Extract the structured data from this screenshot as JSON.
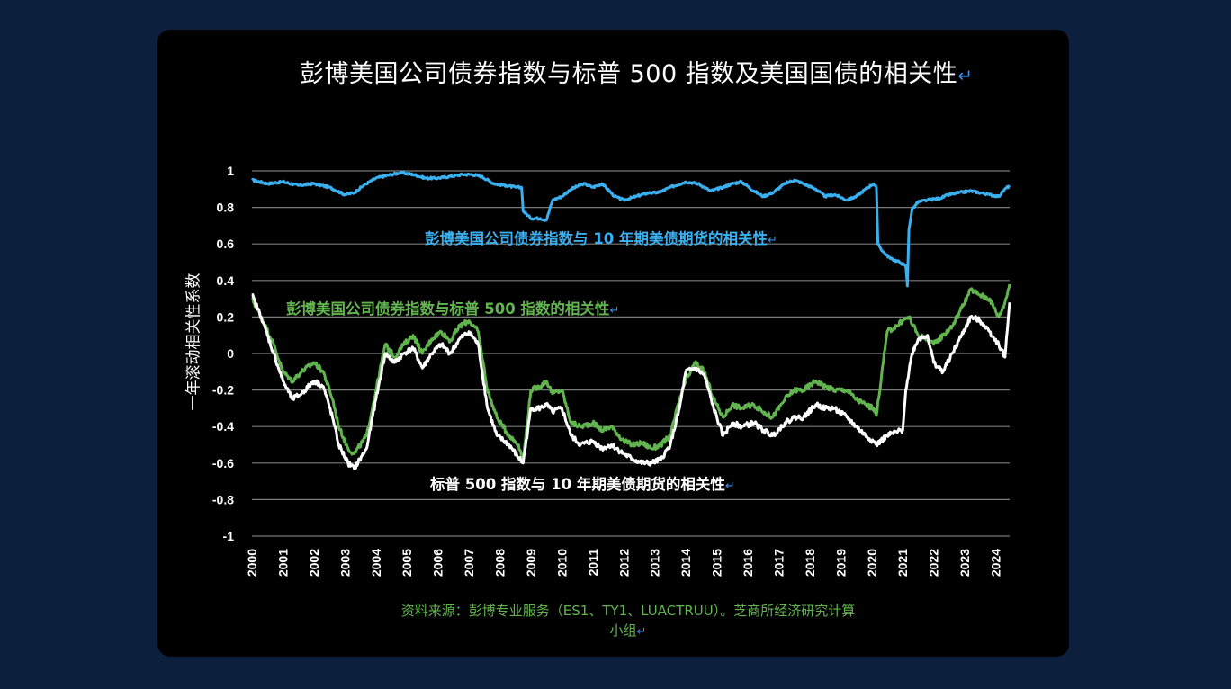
{
  "page": {
    "title": "彭博美国公司债券指数与标普 500 指数及美国国债的相关性",
    "return_mark": "↵",
    "ylabel": "一年滚动相关性系数",
    "source_line1": "资料来源：彭博专业服务（ES1、TY1、LUACTRUU）。芝商所经济研究计算",
    "source_line2": "小组",
    "colors": {
      "background": "#0c1f3c",
      "panel": "#000000",
      "blue": "#3ab0f0",
      "green": "#62b44f",
      "white": "#ffffff"
    }
  },
  "chart_data": {
    "type": "line",
    "title": "彭博美国公司债券指数与标普 500 指数及美国国债的相关性",
    "xlabel": "",
    "ylabel": "一年滚动相关性系数",
    "xlim": [
      2000,
      2024.45
    ],
    "ylim": [
      -1,
      1
    ],
    "yticks": [
      "1",
      "0.8",
      "0.6",
      "0.4",
      "0.2",
      "0",
      "-0.2",
      "-0.4",
      "-0.6",
      "-0.8",
      "-1"
    ],
    "xticks": [
      "2000",
      "2001",
      "2002",
      "2003",
      "2004",
      "2005",
      "2006",
      "2007",
      "2008",
      "2009",
      "2010",
      "2011",
      "2012",
      "2013",
      "2014",
      "2015",
      "2016",
      "2017",
      "2018",
      "2019",
      "2020",
      "2021",
      "2022",
      "2023",
      "2024"
    ],
    "grid": true,
    "series": [
      {
        "name": "彭博美国公司债券指数与 10 年期美债期货的相关性",
        "color": "#3ab0f0",
        "x": [
          2000,
          2000.5,
          2001,
          2001.5,
          2002,
          2002.5,
          2003,
          2003.3,
          2003.6,
          2004,
          2004.5,
          2004.8,
          2005.2,
          2005.6,
          2006,
          2006.4,
          2006.8,
          2007.1,
          2007.4,
          2007.8,
          2008.2,
          2008.5,
          2008.7,
          2008.75,
          2009,
          2009.3,
          2009.5,
          2009.7,
          2010,
          2010.3,
          2010.7,
          2011,
          2011.3,
          2011.7,
          2012,
          2012.4,
          2012.8,
          2013.1,
          2013.5,
          2014,
          2014.4,
          2014.8,
          2015.2,
          2015.5,
          2015.8,
          2016.2,
          2016.5,
          2016.8,
          2017.2,
          2017.5,
          2017.8,
          2018.2,
          2018.5,
          2018.8,
          2019.2,
          2019.5,
          2019.8,
          2020.05,
          2020.15,
          2020.2,
          2020.35,
          2020.6,
          2020.9,
          2021.1,
          2021.15,
          2021.2,
          2021.3,
          2021.5,
          2021.8,
          2022.2,
          2022.5,
          2022.8,
          2023.2,
          2023.5,
          2023.8,
          2024.1,
          2024.3,
          2024.45
        ],
        "y": [
          0.95,
          0.93,
          0.94,
          0.92,
          0.93,
          0.91,
          0.87,
          0.88,
          0.92,
          0.96,
          0.98,
          0.99,
          0.98,
          0.96,
          0.96,
          0.97,
          0.98,
          0.98,
          0.97,
          0.93,
          0.92,
          0.91,
          0.91,
          0.78,
          0.74,
          0.74,
          0.73,
          0.84,
          0.86,
          0.9,
          0.93,
          0.91,
          0.93,
          0.86,
          0.84,
          0.86,
          0.88,
          0.88,
          0.91,
          0.94,
          0.93,
          0.89,
          0.91,
          0.93,
          0.94,
          0.89,
          0.86,
          0.88,
          0.93,
          0.95,
          0.93,
          0.9,
          0.86,
          0.87,
          0.84,
          0.86,
          0.9,
          0.93,
          0.91,
          0.6,
          0.56,
          0.52,
          0.5,
          0.48,
          0.37,
          0.68,
          0.79,
          0.83,
          0.84,
          0.85,
          0.87,
          0.88,
          0.89,
          0.88,
          0.87,
          0.86,
          0.9,
          0.92
        ]
      },
      {
        "name": "彭博美国公司债券指数与标普 500 指数的相关性",
        "color": "#62b44f",
        "x": [
          2000,
          2000.3,
          2000.7,
          2001,
          2001.3,
          2001.6,
          2002,
          2002.3,
          2002.6,
          2002.8,
          2003.1,
          2003.3,
          2003.7,
          2004,
          2004.3,
          2004.6,
          2004.9,
          2005.2,
          2005.5,
          2005.8,
          2006.1,
          2006.4,
          2006.7,
          2007,
          2007.3,
          2007.6,
          2007.9,
          2008.3,
          2008.6,
          2008.75,
          2009,
          2009.3,
          2009.5,
          2009.7,
          2010,
          2010.3,
          2010.6,
          2011,
          2011.3,
          2011.6,
          2012,
          2012.3,
          2012.6,
          2012.9,
          2013.2,
          2013.5,
          2013.8,
          2014,
          2014.3,
          2014.6,
          2014.9,
          2015.2,
          2015.5,
          2015.8,
          2016.2,
          2016.5,
          2016.8,
          2017.2,
          2017.5,
          2017.8,
          2018.2,
          2018.5,
          2018.8,
          2019.2,
          2019.5,
          2019.8,
          2020.05,
          2020.15,
          2020.5,
          2020.8,
          2021,
          2021.2,
          2021.5,
          2021.8,
          2022,
          2022.3,
          2022.6,
          2022.9,
          2023.2,
          2023.5,
          2023.8,
          2024.1,
          2024.3,
          2024.45
        ],
        "y": [
          0.3,
          0.2,
          0.05,
          -0.1,
          -0.15,
          -0.1,
          -0.05,
          -0.1,
          -0.25,
          -0.4,
          -0.52,
          -0.55,
          -0.45,
          -0.2,
          0.05,
          -0.02,
          0.05,
          0.1,
          0.0,
          0.08,
          0.12,
          0.07,
          0.15,
          0.18,
          0.12,
          -0.2,
          -0.35,
          -0.45,
          -0.5,
          -0.58,
          -0.2,
          -0.18,
          -0.15,
          -0.22,
          -0.2,
          -0.38,
          -0.4,
          -0.38,
          -0.42,
          -0.4,
          -0.48,
          -0.5,
          -0.49,
          -0.52,
          -0.5,
          -0.45,
          -0.25,
          -0.15,
          -0.05,
          -0.1,
          -0.25,
          -0.35,
          -0.28,
          -0.3,
          -0.28,
          -0.32,
          -0.35,
          -0.25,
          -0.2,
          -0.2,
          -0.15,
          -0.18,
          -0.2,
          -0.2,
          -0.25,
          -0.28,
          -0.3,
          -0.34,
          0.12,
          0.15,
          0.18,
          0.2,
          0.1,
          0.08,
          0.05,
          0.1,
          0.15,
          0.25,
          0.35,
          0.32,
          0.3,
          0.2,
          0.28,
          0.38
        ]
      },
      {
        "name": "标普 500 指数与 10 年期美债期货的相关性",
        "color": "#ffffff",
        "x": [
          2000,
          2000.3,
          2000.7,
          2001,
          2001.3,
          2001.6,
          2002,
          2002.3,
          2002.6,
          2002.8,
          2003.1,
          2003.3,
          2003.7,
          2004,
          2004.3,
          2004.6,
          2004.9,
          2005.2,
          2005.5,
          2005.8,
          2006.1,
          2006.4,
          2006.7,
          2007,
          2007.3,
          2007.6,
          2007.9,
          2008.3,
          2008.6,
          2008.75,
          2009,
          2009.3,
          2009.5,
          2009.7,
          2010,
          2010.3,
          2010.6,
          2011,
          2011.3,
          2011.6,
          2012,
          2012.3,
          2012.6,
          2012.9,
          2013.2,
          2013.5,
          2013.8,
          2014,
          2014.3,
          2014.6,
          2014.9,
          2015.2,
          2015.5,
          2015.8,
          2016.2,
          2016.5,
          2016.8,
          2017.2,
          2017.5,
          2017.8,
          2018.2,
          2018.5,
          2018.8,
          2019.2,
          2019.5,
          2019.8,
          2020.05,
          2020.15,
          2020.5,
          2020.8,
          2021,
          2021.1,
          2021.3,
          2021.5,
          2021.8,
          2022,
          2022.3,
          2022.6,
          2022.9,
          2023.2,
          2023.5,
          2023.8,
          2024.1,
          2024.3,
          2024.45
        ],
        "y": [
          0.32,
          0.2,
          0.0,
          -0.15,
          -0.25,
          -0.22,
          -0.15,
          -0.18,
          -0.35,
          -0.5,
          -0.6,
          -0.63,
          -0.52,
          -0.25,
          0.0,
          -0.05,
          0.0,
          0.03,
          -0.08,
          0.0,
          0.05,
          0.0,
          0.08,
          0.12,
          0.05,
          -0.3,
          -0.45,
          -0.5,
          -0.57,
          -0.6,
          -0.3,
          -0.3,
          -0.28,
          -0.32,
          -0.3,
          -0.45,
          -0.5,
          -0.48,
          -0.52,
          -0.5,
          -0.55,
          -0.58,
          -0.6,
          -0.6,
          -0.58,
          -0.5,
          -0.3,
          -0.1,
          -0.08,
          -0.12,
          -0.3,
          -0.45,
          -0.38,
          -0.4,
          -0.38,
          -0.42,
          -0.45,
          -0.38,
          -0.35,
          -0.35,
          -0.28,
          -0.3,
          -0.3,
          -0.35,
          -0.4,
          -0.45,
          -0.48,
          -0.5,
          -0.45,
          -0.43,
          -0.42,
          -0.2,
          0.0,
          0.08,
          0.1,
          -0.05,
          -0.1,
          0.0,
          0.1,
          0.2,
          0.18,
          0.12,
          0.05,
          -0.02,
          0.28
        ]
      }
    ],
    "annotations": [
      {
        "text": "彭博美国公司债券指数与 10 年期美债期货的相关性",
        "series": 0,
        "color": "#3ab0f0"
      },
      {
        "text": "彭博美国公司债券指数与标普 500 指数的相关性",
        "series": 1,
        "color": "#62b44f"
      },
      {
        "text": "标普 500 指数与 10 年期美债期货的相关性",
        "series": 2,
        "color": "#ffffff"
      }
    ]
  }
}
